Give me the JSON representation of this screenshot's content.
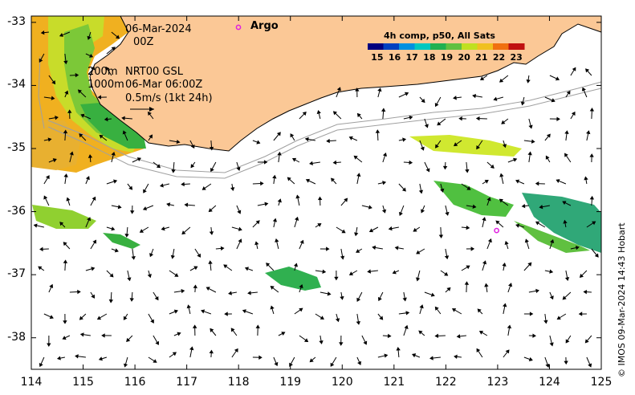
{
  "map": {
    "date_line1": "06-Mar-2024",
    "date_line2": "00Z",
    "depth_line1": "200m",
    "depth_line2": "1000m",
    "source_line1": "NRT00 GSL",
    "source_line2": "06-Mar 06:00Z",
    "vector_scale": "0.5m/s (1kt 24h)",
    "argo_label": "Argo",
    "credit": "© IMOS 09-Mar-2024 14:43 Hobart"
  },
  "colorbar": {
    "title": "4h comp, p50, All Sats",
    "ticks": [
      "15",
      "16",
      "17",
      "18",
      "19",
      "20",
      "21",
      "22",
      "23"
    ],
    "colors": [
      "#00007f",
      "#0040c0",
      "#0090e0",
      "#00c8c0",
      "#20b050",
      "#60c040",
      "#c0e020",
      "#f0c020",
      "#f07010",
      "#c01010"
    ]
  },
  "axes": {
    "lat_ticks": [
      "-33",
      "-34",
      "-35",
      "-36",
      "-37",
      "-38"
    ],
    "lon_ticks": [
      "114",
      "115",
      "116",
      "117",
      "118",
      "119",
      "120",
      "121",
      "122",
      "123",
      "124",
      "125"
    ],
    "lat_range": [
      -38.5,
      -32.9
    ],
    "lon_range": [
      114,
      125
    ]
  },
  "argo_float": {
    "lon": 122.98,
    "lat": -36.3
  },
  "colors": {
    "land": "#fbc896",
    "isobath": "#a0a0a0",
    "argo": "#e020e0"
  }
}
